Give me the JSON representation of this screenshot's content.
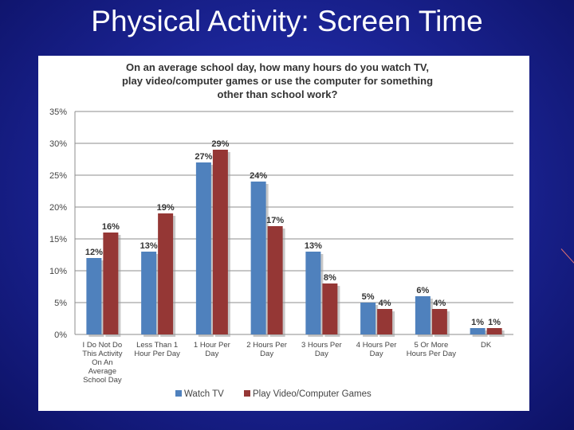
{
  "slide": {
    "title": "Physical Activity: Screen Time"
  },
  "colors": {
    "watch_tv": "#4f81bd",
    "play_games": "#953735",
    "grid": "#8c8c8c",
    "text": "#333333"
  },
  "chart_data": {
    "type": "bar",
    "title": "On an average school day, how many hours do you watch TV, play video/computer games or use the computer for something other than school work?",
    "title_lines": [
      "On an average school day, how many hours do you watch TV,",
      "play video/computer games or use the computer for something",
      "other than school work?"
    ],
    "categories": [
      [
        "I Do Not Do",
        "This Activity",
        "On An",
        "Average",
        "School Day"
      ],
      [
        "Less Than 1",
        "Hour Per Day"
      ],
      [
        "1 Hour Per",
        "Day"
      ],
      [
        "2 Hours Per",
        "Day"
      ],
      [
        "3 Hours Per",
        "Day"
      ],
      [
        "4 Hours Per",
        "Day"
      ],
      [
        "5 Or More",
        "Hours Per Day"
      ],
      [
        "DK"
      ]
    ],
    "series": [
      {
        "name": "Watch TV",
        "values": [
          12,
          13,
          27,
          24,
          13,
          5,
          6,
          1
        ],
        "labels": [
          "12%",
          "13%",
          "27%",
          "24%",
          "13%",
          "5%",
          "6%",
          "1%"
        ]
      },
      {
        "name": "Play Video/Computer Games",
        "values": [
          16,
          19,
          29,
          17,
          8,
          4,
          4,
          1
        ],
        "labels": [
          "16%",
          "19%",
          "29%",
          "17%",
          "8%",
          "4%",
          "4%",
          "1%"
        ]
      }
    ],
    "y_ticks": [
      "0%",
      "5%",
      "10%",
      "15%",
      "20%",
      "25%",
      "30%",
      "35%"
    ],
    "ylim": [
      0,
      35
    ],
    "xlabel": "",
    "ylabel": "",
    "grid": true,
    "legend": "bottom"
  }
}
